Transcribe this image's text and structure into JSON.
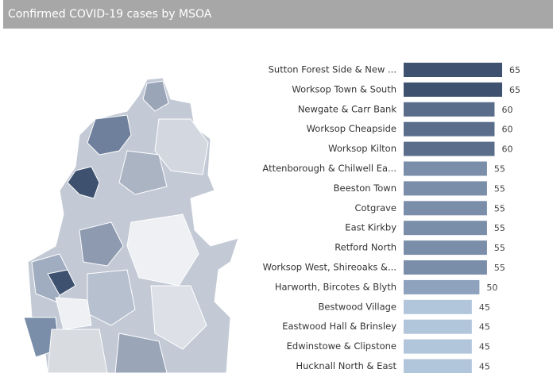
{
  "chart_data": {
    "type": "hbar",
    "title": "Confirmed COVID-19 cases by MSOA",
    "categories": [
      "Sutton Forest Side & New ...",
      "Worksop Town & South",
      "Newgate & Carr Bank",
      "Worksop Cheapside",
      "Worksop Kilton",
      "Attenborough & Chilwell Ea...",
      "Beeston Town",
      "Cotgrave",
      "East Kirkby",
      "Retford North",
      "Worksop West, Shireoaks &...",
      "Harworth, Bircotes & Blyth",
      "Bestwood Village",
      "Eastwood Hall & Brinsley",
      "Edwinstowe & Clipstone",
      "Hucknall North & East"
    ],
    "values": [
      65,
      65,
      60,
      60,
      60,
      55,
      55,
      55,
      55,
      55,
      55,
      50,
      45,
      45,
      45,
      45
    ],
    "colors": [
      "#3e526f",
      "#3e526f",
      "#5a6e8c",
      "#5a6e8c",
      "#5a6e8c",
      "#7a8eaa",
      "#7a8eaa",
      "#7a8eaa",
      "#7a8eaa",
      "#7a8eaa",
      "#7a8eaa",
      "#8ea2be",
      "#b1c5db",
      "#b1c5db",
      "#b1c5db",
      "#b1c5db"
    ]
  }
}
